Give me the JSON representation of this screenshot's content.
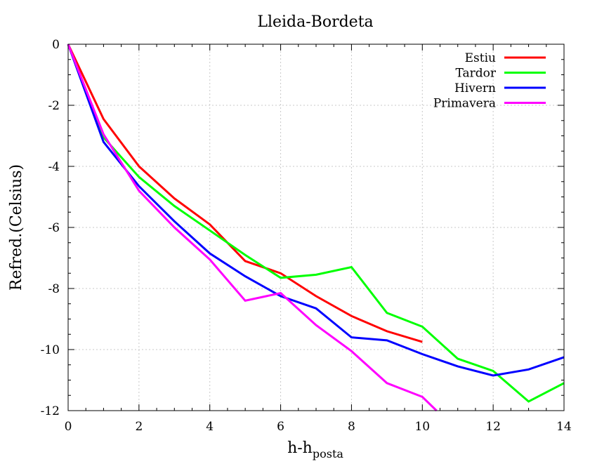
{
  "chart_data": {
    "type": "line",
    "title": "Lleida-Bordeta",
    "xlabel_main": "h-h",
    "xlabel_sub": "posta",
    "ylabel": "Refred.(Celsius)",
    "xlim": [
      0,
      14
    ],
    "ylim": [
      -12,
      0
    ],
    "x_ticks": [
      0,
      2,
      4,
      6,
      8,
      10,
      12,
      14
    ],
    "y_ticks": [
      0,
      -2,
      -4,
      -6,
      -8,
      -10,
      -12
    ],
    "x_tick_labels": [
      "0",
      "2",
      "4",
      "6",
      "8",
      "10",
      "12",
      "14"
    ],
    "y_tick_labels": [
      "0",
      "-2",
      "-4",
      "-6",
      "-8",
      "-10",
      "-12"
    ],
    "grid": true,
    "legend_position": "top-right",
    "series": [
      {
        "name": "Estiu",
        "color": "#ff0000",
        "x": [
          0,
          1,
          2,
          3,
          4,
          5,
          6,
          7,
          8,
          9,
          10
        ],
        "y": [
          0,
          -2.45,
          -4.0,
          -5.05,
          -5.9,
          -7.1,
          -7.5,
          -8.25,
          -8.9,
          -9.4,
          -9.75
        ]
      },
      {
        "name": "Tardor",
        "color": "#00ff00",
        "x": [
          0,
          1,
          2,
          3,
          4,
          5,
          6,
          7,
          8,
          9,
          10,
          11,
          12,
          13,
          14
        ],
        "y": [
          0,
          -3.05,
          -4.35,
          -5.3,
          -6.1,
          -6.9,
          -7.65,
          -7.55,
          -7.3,
          -8.8,
          -9.25,
          -10.3,
          -10.7,
          -11.7,
          -11.1
        ]
      },
      {
        "name": "Hivern",
        "color": "#0000ff",
        "x": [
          0,
          1,
          2,
          3,
          4,
          5,
          6,
          7,
          8,
          9,
          10,
          11,
          12,
          13,
          14
        ],
        "y": [
          0,
          -3.2,
          -4.65,
          -5.8,
          -6.85,
          -7.6,
          -8.25,
          -8.65,
          -9.6,
          -9.7,
          -10.15,
          -10.55,
          -10.85,
          -10.65,
          -10.25
        ]
      },
      {
        "name": "Primavera",
        "color": "#ff00ff",
        "x": [
          0,
          1,
          2,
          3,
          4,
          5,
          6,
          7,
          8,
          9,
          10,
          10.4
        ],
        "y": [
          0,
          -2.95,
          -4.8,
          -6.0,
          -7.05,
          -8.4,
          -8.15,
          -9.2,
          -10.05,
          -11.1,
          -11.55,
          -12.0
        ]
      }
    ]
  }
}
